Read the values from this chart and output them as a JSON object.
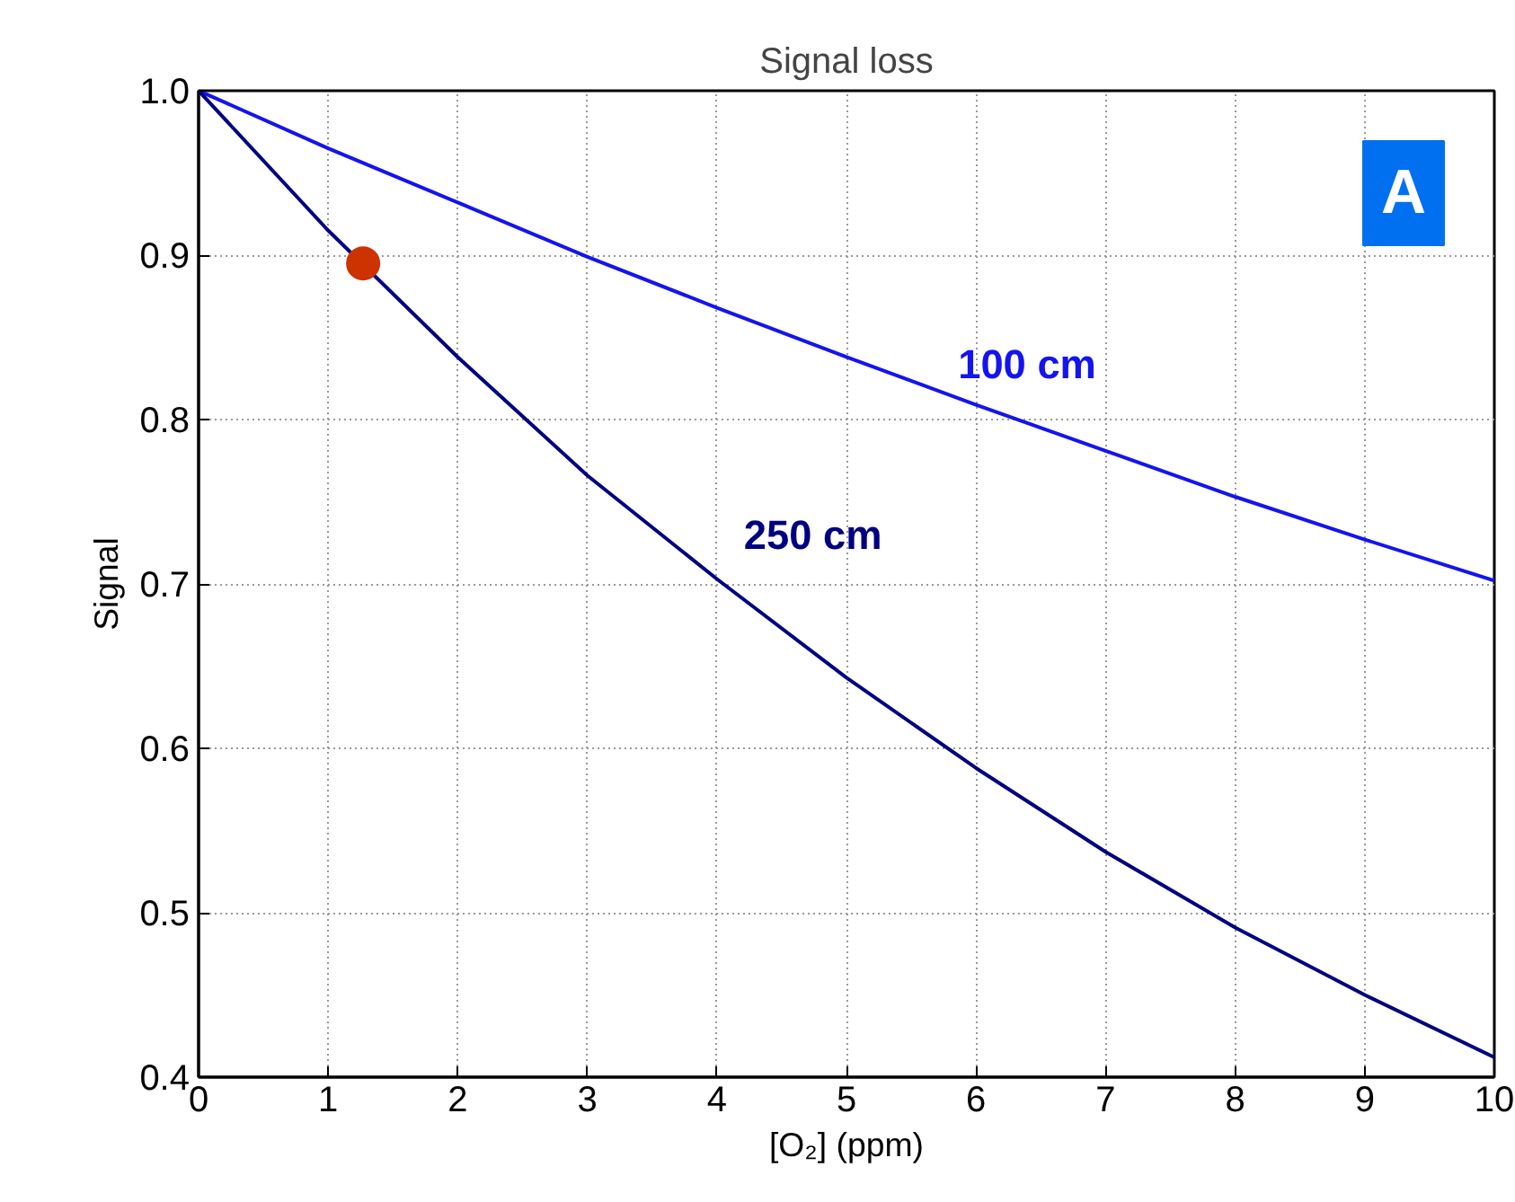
{
  "chart_data": {
    "type": "line",
    "title": "Signal loss",
    "xlabel": "[O₂] (ppm)",
    "ylabel": "Signal",
    "x": [
      0,
      1,
      2,
      3,
      4,
      5,
      6,
      7,
      8,
      9,
      10
    ],
    "series": [
      {
        "name": "100 cm",
        "color": "#1414f0",
        "values": [
          1.0,
          0.965,
          0.932,
          0.899,
          0.868,
          0.838,
          0.809,
          0.781,
          0.753,
          0.727,
          0.702
        ]
      },
      {
        "name": "250 cm",
        "color": "#000080",
        "values": [
          1.0,
          0.915,
          0.838,
          0.766,
          0.703,
          0.643,
          0.588,
          0.537,
          0.491,
          0.45,
          0.412
        ]
      },
      {
        "type": "scatter",
        "color": "#cc3300",
        "x": [
          1.27
        ],
        "values": [
          0.895
        ],
        "marker": "circle"
      }
    ],
    "annotations": [
      "A"
    ],
    "xlim": [
      0,
      10
    ],
    "ylim": [
      0.4,
      1.0
    ],
    "xticks": [
      0,
      1,
      2,
      3,
      4,
      5,
      6,
      7,
      8,
      9,
      10
    ],
    "yticks": [
      {
        "value": 0.4,
        "label": "0.4"
      },
      {
        "value": 0.5,
        "label": "0.5"
      },
      {
        "value": 0.6,
        "label": "0.6"
      },
      {
        "value": 0.7,
        "label": "0.7"
      },
      {
        "value": 0.8,
        "label": "0.8"
      },
      {
        "value": 0.9,
        "label": "0.9"
      },
      {
        "value": 1.0,
        "label": "1.0"
      }
    ],
    "grid": true,
    "line_style": "solid"
  }
}
